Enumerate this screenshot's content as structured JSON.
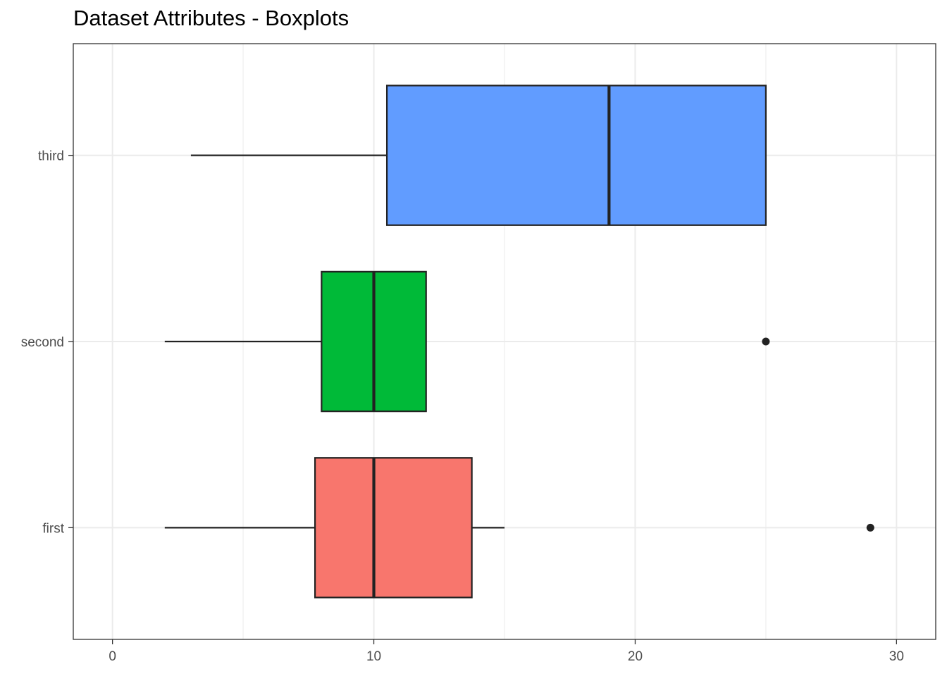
{
  "chart_data": {
    "type": "boxplot",
    "title": "Dataset Attributes - Boxplots",
    "xlabel": "",
    "ylabel": "",
    "orientation": "horizontal",
    "xlim": [
      -1.5,
      31.5
    ],
    "x_ticks": [
      0,
      10,
      20,
      30
    ],
    "grid": true,
    "legend": "none",
    "categories": [
      "first",
      "second",
      "third"
    ],
    "series": [
      {
        "name": "first",
        "color": "#F8766D",
        "whisker_low": 2,
        "q1": 7.75,
        "median": 10,
        "q3": 13.75,
        "whisker_high": 15,
        "outliers": [
          29
        ]
      },
      {
        "name": "second",
        "color": "#00BA38",
        "whisker_low": 2,
        "q1": 8,
        "median": 10,
        "q3": 12,
        "whisker_high": 12,
        "outliers": [
          25
        ]
      },
      {
        "name": "third",
        "color": "#619CFF",
        "whisker_low": 3,
        "q1": 10.5,
        "median": 19,
        "q3": 25,
        "whisker_high": 25,
        "outliers": []
      }
    ]
  }
}
